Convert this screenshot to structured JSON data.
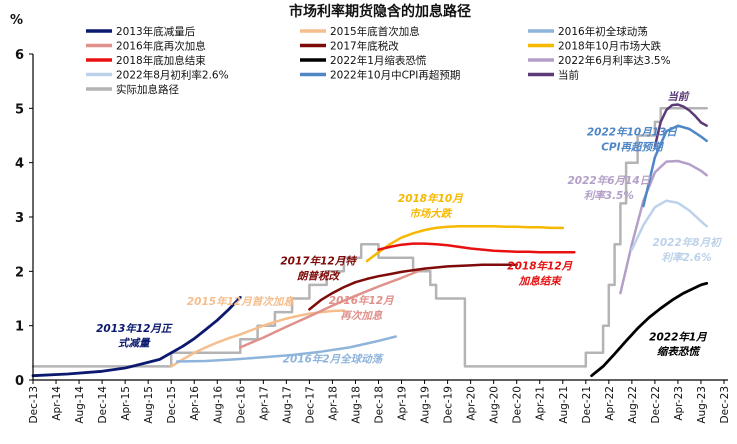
{
  "chart_data": {
    "type": "line",
    "title": "市场利率期货隐含的加息路径",
    "ylabel": "%",
    "xlabel": "",
    "ylim": [
      0,
      6
    ],
    "yticks": [
      0,
      1,
      2,
      3,
      4,
      5,
      6
    ],
    "grid": false,
    "legend_position": "top",
    "x_index_origin": "Dec-13",
    "x_tick_labels": [
      "Dec-13",
      "Apr-14",
      "Aug-14",
      "Dec-14",
      "Apr-15",
      "Aug-15",
      "Dec-15",
      "Apr-16",
      "Aug-16",
      "Dec-16",
      "Apr-17",
      "Aug-17",
      "Dec-17",
      "Apr-18",
      "Aug-18",
      "Dec-18",
      "Apr-19",
      "Aug-19",
      "Dec-19",
      "Apr-20",
      "Aug-20",
      "Dec-20",
      "Apr-21",
      "Aug-21",
      "Dec-21",
      "Apr-22",
      "Aug-22",
      "Dec-22",
      "Apr-23",
      "Aug-23",
      "Dec-23"
    ],
    "legend": [
      {
        "name": "2013年底减量后",
        "color": "#0b1a6e"
      },
      {
        "name": "2015年底首次加息",
        "color": "#f5be8c"
      },
      {
        "name": "2016年初全球动荡",
        "color": "#8fb4dc"
      },
      {
        "name": "2016年底再次加息",
        "color": "#e0918b"
      },
      {
        "name": "2017年底税改",
        "color": "#7f0a0a"
      },
      {
        "name": "2018年10月市场大跌",
        "color": "#f7b800"
      },
      {
        "name": "2018年底加息结束",
        "color": "#e81010"
      },
      {
        "name": "2022年1月缩表恐慌",
        "color": "#000000"
      },
      {
        "name": "2022年6月利率达3.5%",
        "color": "#b49fc8"
      },
      {
        "name": "2022年8月初利率2.6%",
        "color": "#bcd2ea"
      },
      {
        "name": "2022年10月中CPI再超预期",
        "color": "#4f86c6"
      },
      {
        "name": "当前",
        "color": "#5c3a78"
      },
      {
        "name": "实际加息路径",
        "color": "#b4b4b4"
      }
    ],
    "series": [
      {
        "name": "实际加息路径",
        "color": "#b4b4b4",
        "width": 2.5,
        "x": [
          0,
          24,
          24,
          36,
          36,
          39,
          39,
          42,
          42,
          45,
          45,
          48,
          48,
          51,
          51,
          54,
          54,
          57,
          57,
          60,
          60,
          66,
          66,
          69,
          69,
          70,
          70,
          75,
          75,
          96,
          96,
          99,
          99,
          100,
          100,
          101,
          101,
          102,
          102,
          103,
          103,
          105,
          105,
          108,
          108,
          109,
          109,
          117
        ],
        "y": [
          0.25,
          0.25,
          0.5,
          0.5,
          0.75,
          0.75,
          1.0,
          1.0,
          1.25,
          1.25,
          1.5,
          1.5,
          1.75,
          1.75,
          2.0,
          2.0,
          2.25,
          2.25,
          2.5,
          2.5,
          2.25,
          2.25,
          2.0,
          2.0,
          1.75,
          1.75,
          1.5,
          1.5,
          0.25,
          0.25,
          0.5,
          0.5,
          1.0,
          1.0,
          1.75,
          1.75,
          2.5,
          2.5,
          3.25,
          3.25,
          4.0,
          4.0,
          4.5,
          4.5,
          4.75,
          4.75,
          5.0,
          5.0
        ]
      },
      {
        "name": "2013年底减量后",
        "color": "#0b1a6e",
        "width": 2.8,
        "x": [
          0,
          6,
          12,
          16,
          18,
          22,
          24,
          26,
          28,
          30,
          32,
          34,
          36
        ],
        "y": [
          0.08,
          0.11,
          0.16,
          0.22,
          0.27,
          0.38,
          0.5,
          0.62,
          0.76,
          0.93,
          1.1,
          1.3,
          1.52
        ]
      },
      {
        "name": "2015年底首次加息",
        "color": "#f5be8c",
        "width": 2.5,
        "x": [
          24,
          26,
          28,
          30,
          32,
          34,
          36,
          38,
          40,
          42,
          44,
          46,
          48,
          50,
          52,
          54
        ],
        "y": [
          0.25,
          0.38,
          0.5,
          0.6,
          0.69,
          0.77,
          0.84,
          0.92,
          1.0,
          1.07,
          1.13,
          1.18,
          1.22,
          1.25,
          1.27,
          1.28
        ]
      },
      {
        "name": "2016年初全球动荡",
        "color": "#8fb4dc",
        "width": 2.5,
        "x": [
          25,
          30,
          35,
          40,
          45,
          50,
          55,
          60,
          63
        ],
        "y": [
          0.34,
          0.35,
          0.38,
          0.42,
          0.46,
          0.52,
          0.6,
          0.72,
          0.8
        ]
      },
      {
        "name": "2016年底再次加息",
        "color": "#e0918b",
        "width": 2.5,
        "x": [
          36,
          40,
          44,
          48,
          52,
          56,
          60,
          64,
          68
        ],
        "y": [
          0.6,
          0.78,
          0.98,
          1.17,
          1.37,
          1.55,
          1.72,
          1.88,
          2.05
        ]
      },
      {
        "name": "2017年底税改",
        "color": "#7f0a0a",
        "width": 2.5,
        "x": [
          48,
          50,
          52,
          54,
          56,
          58,
          60,
          62,
          64,
          66,
          68,
          70,
          72,
          74,
          76,
          78,
          80,
          84
        ],
        "y": [
          1.3,
          1.47,
          1.6,
          1.71,
          1.8,
          1.86,
          1.91,
          1.95,
          1.99,
          2.02,
          2.05,
          2.07,
          2.09,
          2.1,
          2.11,
          2.12,
          2.12,
          2.12
        ]
      },
      {
        "name": "2018年10月市场大跌",
        "color": "#f7b800",
        "width": 2.5,
        "x": [
          58,
          60,
          62,
          64,
          66,
          68,
          70,
          72,
          74,
          76,
          78,
          80,
          82,
          84,
          86,
          88,
          90,
          92
        ],
        "y": [
          2.19,
          2.35,
          2.5,
          2.62,
          2.7,
          2.76,
          2.8,
          2.82,
          2.83,
          2.83,
          2.83,
          2.83,
          2.82,
          2.82,
          2.81,
          2.81,
          2.8,
          2.8
        ]
      },
      {
        "name": "2018年底加息结束",
        "color": "#e81010",
        "width": 2.5,
        "x": [
          60,
          62,
          64,
          66,
          68,
          70,
          72,
          74,
          76,
          78,
          80,
          82,
          84,
          86,
          88,
          90,
          92,
          94
        ],
        "y": [
          2.4,
          2.45,
          2.49,
          2.51,
          2.51,
          2.5,
          2.48,
          2.45,
          2.42,
          2.4,
          2.38,
          2.37,
          2.36,
          2.36,
          2.35,
          2.35,
          2.35,
          2.35
        ]
      },
      {
        "name": "2022年1月缩表恐慌",
        "color": "#000000",
        "width": 2.8,
        "x": [
          97,
          99,
          101,
          103,
          105,
          107,
          109,
          111,
          113,
          115,
          116,
          117
        ],
        "y": [
          0.08,
          0.25,
          0.48,
          0.72,
          0.95,
          1.15,
          1.32,
          1.47,
          1.6,
          1.7,
          1.75,
          1.78
        ]
      },
      {
        "name": "2022年6月利率达3.5%",
        "color": "#b49fc8",
        "width": 2.5,
        "x": [
          102,
          104,
          106,
          108,
          110,
          112,
          114,
          116,
          117
        ],
        "y": [
          1.6,
          2.5,
          3.3,
          3.82,
          4.02,
          4.03,
          3.97,
          3.85,
          3.77
        ]
      },
      {
        "name": "2022年8月初利率2.6%",
        "color": "#bcd2ea",
        "width": 2.5,
        "x": [
          104,
          106,
          108,
          110,
          112,
          114,
          116,
          117
        ],
        "y": [
          2.4,
          2.85,
          3.18,
          3.3,
          3.26,
          3.12,
          2.92,
          2.83
        ]
      },
      {
        "name": "2022年10月中CPI再超预期",
        "color": "#4f86c6",
        "width": 2.5,
        "x": [
          106,
          108,
          110,
          112,
          114,
          116,
          117
        ],
        "y": [
          3.2,
          4.1,
          4.58,
          4.68,
          4.62,
          4.48,
          4.4
        ]
      },
      {
        "name": "当前",
        "color": "#5c3a78",
        "width": 2.5,
        "x": [
          108,
          109,
          110,
          111,
          112,
          113,
          114,
          115,
          116,
          117
        ],
        "y": [
          4.3,
          4.75,
          4.97,
          5.06,
          5.07,
          5.03,
          4.96,
          4.86,
          4.74,
          4.68
        ]
      }
    ],
    "annotations": [
      {
        "text": "2013年12月正",
        "x": 17.5,
        "y": 0.88,
        "color": "#0b1a6e"
      },
      {
        "text": "式减量",
        "x": 17.5,
        "y": 0.62,
        "color": "#0b1a6e"
      },
      {
        "text": "2015年12月首次加息",
        "x": 36,
        "y": 1.38,
        "color": "#f5be8c"
      },
      {
        "text": "2016年2月全球动荡",
        "x": 52,
        "y": 0.32,
        "color": "#8fb4dc"
      },
      {
        "text": "2016年12月",
        "x": 57,
        "y": 1.4,
        "color": "#e0918b"
      },
      {
        "text": "再次加息",
        "x": 57,
        "y": 1.12,
        "color": "#e0918b"
      },
      {
        "text": "2017年12月特",
        "x": 49.5,
        "y": 2.13,
        "color": "#7f0a0a"
      },
      {
        "text": "朗普税改",
        "x": 49.5,
        "y": 1.85,
        "color": "#7f0a0a"
      },
      {
        "text": "2018年10月",
        "x": 69,
        "y": 3.28,
        "color": "#f7b800"
      },
      {
        "text": "市场大跌",
        "x": 69,
        "y": 3.0,
        "color": "#f7b800"
      },
      {
        "text": "2018年12月",
        "x": 88,
        "y": 2.03,
        "color": "#e81010"
      },
      {
        "text": "加息结束",
        "x": 88,
        "y": 1.76,
        "color": "#e81010"
      },
      {
        "text": "2022年1月",
        "x": 112,
        "y": 0.73,
        "color": "#000000"
      },
      {
        "text": "缩表恐慌",
        "x": 112,
        "y": 0.46,
        "color": "#000000"
      },
      {
        "text": "2022年6月14日",
        "x": 100,
        "y": 3.61,
        "color": "#b49fc8"
      },
      {
        "text": "利率3.5%",
        "x": 100,
        "y": 3.33,
        "color": "#b49fc8"
      },
      {
        "text": "2022年8月初",
        "x": 113.5,
        "y": 2.47,
        "color": "#bcd2ea"
      },
      {
        "text": "利率2.6%",
        "x": 113.5,
        "y": 2.19,
        "color": "#bcd2ea"
      },
      {
        "text": "2022年10月13日",
        "x": 104,
        "y": 4.5,
        "color": "#4f86c6"
      },
      {
        "text": "CPI再超预期",
        "x": 104,
        "y": 4.22,
        "color": "#4f86c6"
      },
      {
        "text": "当前",
        "x": 112,
        "y": 5.15,
        "color": "#5c3a78"
      }
    ]
  }
}
